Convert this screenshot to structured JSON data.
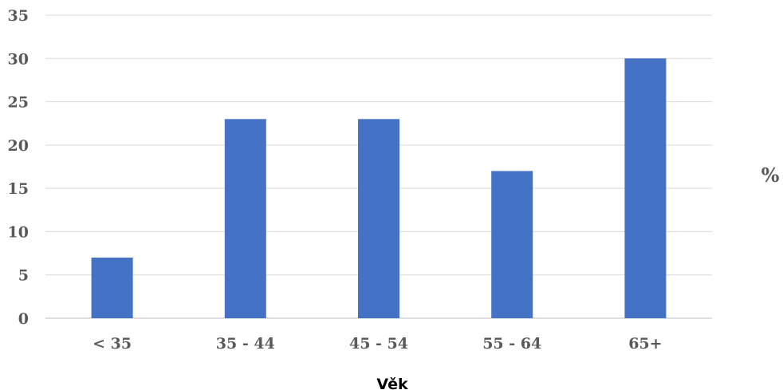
{
  "chart_data": {
    "type": "bar",
    "title": "",
    "xlabel": "Věk",
    "ylabel": "%",
    "categories": [
      "< 35",
      "35 - 44",
      "45 - 54",
      "55 - 64",
      "65+"
    ],
    "values": [
      7,
      23,
      23,
      17,
      30
    ],
    "ylim": [
      0,
      35
    ],
    "yticks": [
      "0",
      "5",
      "10",
      "15",
      "20",
      "25",
      "30",
      "35"
    ],
    "grid": true,
    "legend": "none",
    "bar_color": "#4472C4"
  }
}
